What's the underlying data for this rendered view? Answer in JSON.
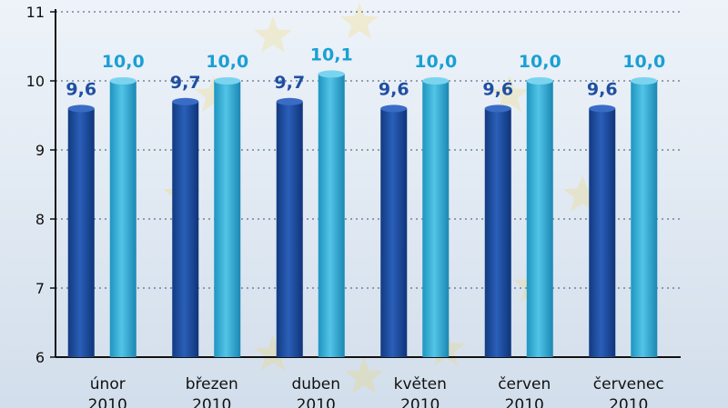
{
  "chart_data": {
    "type": "bar",
    "title": "",
    "xlabel": "",
    "ylabel": "",
    "ylim": [
      6,
      11
    ],
    "yticks": [
      6,
      7,
      8,
      9,
      10,
      11
    ],
    "grid": true,
    "categories": [
      {
        "month": "únor",
        "year": "2010"
      },
      {
        "month": "březen",
        "year": "2010"
      },
      {
        "month": "duben",
        "year": "2010"
      },
      {
        "month": "květen",
        "year": "2010"
      },
      {
        "month": "červen",
        "year": "2010"
      },
      {
        "month": "červenec",
        "year": "2010"
      }
    ],
    "series": [
      {
        "name": "series-1",
        "color": "#1f4fa3",
        "values": [
          9.6,
          9.7,
          9.7,
          9.6,
          9.6,
          9.6
        ],
        "labels": [
          "9,6",
          "9,7",
          "9,7",
          "9,6",
          "9,6",
          "9,6"
        ]
      },
      {
        "name": "series-2",
        "color": "#2eaed6",
        "values": [
          10.0,
          10.0,
          10.1,
          10.0,
          10.0,
          10.0
        ],
        "labels": [
          "10,0",
          "10,0",
          "10,1",
          "10,0",
          "10,0",
          "10,0"
        ]
      }
    ]
  }
}
